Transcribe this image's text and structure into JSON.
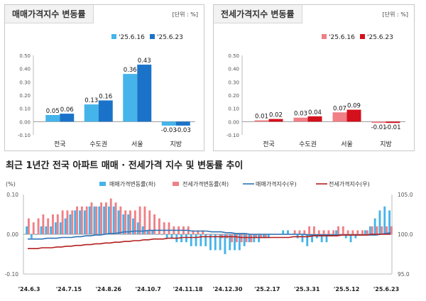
{
  "sale_panel": {
    "title": "매매가격지수 변동률",
    "unit": "[단위 : %]"
  },
  "jeonse_panel": {
    "title": "전세가격지수 변동률",
    "unit": "[단위 : %]"
  },
  "bottom": {
    "title": "최근 1년간 전국 아파트 매매 · 전세가격 지수 및 변동률 추이"
  },
  "colors": {
    "sale_light": "#45b4ea",
    "sale_dark": "#1a73c9",
    "jeonse_light": "#f07f86",
    "jeonse_dark": "#d3101c",
    "sale_index_line": "#2e74b6",
    "jeonse_index_line": "#b41e1e"
  },
  "chart_data": [
    {
      "type": "bar",
      "categories": [
        "전국",
        "수도권",
        "서울",
        "지방"
      ],
      "series": [
        {
          "name": "'25.6.16",
          "values": [
            0.05,
            0.13,
            0.36,
            -0.03
          ]
        },
        {
          "name": "'25.6.23",
          "values": [
            0.06,
            0.16,
            0.43,
            -0.03
          ]
        }
      ],
      "ylim": [
        -0.1,
        0.5
      ],
      "yticks": [
        "-0.10",
        "0.00",
        "0.10",
        "0.20",
        "0.30",
        "0.40",
        "0.50"
      ],
      "data_labels": true,
      "grid": false,
      "legend": "top-right"
    },
    {
      "type": "bar",
      "categories": [
        "전국",
        "수도권",
        "서울",
        "지방"
      ],
      "series": [
        {
          "name": "'25.6.16",
          "values": [
            0.01,
            0.03,
            0.07,
            -0.01
          ]
        },
        {
          "name": "'25.6.23",
          "values": [
            0.02,
            0.04,
            0.09,
            -0.01
          ]
        }
      ],
      "ylim": [
        -0.1,
        0.5
      ],
      "yticks": [
        "-0.10",
        "0.00",
        "0.10",
        "0.20",
        "0.30",
        "0.40",
        "0.50"
      ],
      "data_labels": true,
      "grid": false,
      "legend": "top-right"
    },
    {
      "type": "bar",
      "unit_label": "(%)",
      "x_ticks": [
        "'24.6.3",
        "'24.7.15",
        "'24.8.26",
        "'24.10.7",
        "'24.11.18",
        "'24.12.30",
        "'25.2.17",
        "'25.3.31",
        "'25.5.12",
        "'25.6.23"
      ],
      "y_left_ticks": [
        "0.10",
        "0.00",
        "-0.10"
      ],
      "y_right_ticks": [
        "105.0",
        "100.0",
        "95.0"
      ],
      "ylim_left": [
        -0.1,
        0.1
      ],
      "ylim_right": [
        95.0,
        105.0
      ],
      "legend": "top",
      "series": [
        {
          "name": "매매가격변동률(좌)",
          "kind": "bar",
          "axis": "left",
          "values": [
            0.02,
            -0.01,
            0.0,
            0.02,
            0.02,
            0.02,
            0.03,
            0.03,
            0.04,
            0.05,
            0.06,
            0.06,
            0.06,
            0.07,
            0.07,
            0.07,
            0.07,
            0.07,
            0.07,
            0.06,
            0.05,
            0.05,
            0.04,
            0.03,
            0.02,
            0.01,
            0.01,
            0.0,
            0.0,
            -0.01,
            -0.01,
            -0.02,
            -0.02,
            -0.02,
            -0.03,
            -0.03,
            -0.03,
            -0.03,
            -0.04,
            -0.04,
            -0.04,
            -0.05,
            -0.04,
            -0.04,
            -0.04,
            -0.03,
            -0.02,
            -0.02,
            -0.02,
            -0.01,
            -0.01,
            0.0,
            0.0,
            0.01,
            0.01,
            0.0,
            -0.01,
            -0.02,
            -0.03,
            -0.02,
            -0.01,
            -0.02,
            -0.02,
            0.0,
            0.01,
            0.0,
            -0.01,
            -0.02,
            -0.01,
            0.0,
            0.01,
            0.02,
            0.04,
            0.06,
            0.07,
            0.06
          ]
        },
        {
          "name": "전세가격변동률(좌)",
          "kind": "bar",
          "axis": "left",
          "values": [
            0.04,
            0.03,
            0.04,
            0.05,
            0.04,
            0.05,
            0.05,
            0.06,
            0.06,
            0.06,
            0.07,
            0.07,
            0.07,
            0.08,
            0.07,
            0.08,
            0.08,
            0.09,
            0.08,
            0.07,
            0.06,
            0.06,
            0.06,
            0.07,
            0.07,
            0.06,
            0.05,
            0.04,
            0.03,
            0.03,
            0.02,
            0.02,
            0.02,
            0.02,
            0.01,
            0.01,
            0.01,
            0.0,
            0.0,
            0.0,
            -0.01,
            -0.01,
            -0.02,
            -0.02,
            -0.02,
            -0.02,
            -0.02,
            -0.01,
            -0.01,
            -0.01,
            0.0,
            0.0,
            0.0,
            0.0,
            0.0,
            0.01,
            0.01,
            0.01,
            0.02,
            0.02,
            0.01,
            0.01,
            0.01,
            0.01,
            0.02,
            0.02,
            0.01,
            0.01,
            0.01,
            0.01,
            0.01,
            0.02,
            0.02,
            0.02,
            0.02,
            0.02
          ]
        },
        {
          "name": "매매가격지수(우)",
          "kind": "line",
          "axis": "right",
          "values": [
            99.4,
            99.4,
            99.4,
            99.4,
            99.5,
            99.5,
            99.5,
            99.6,
            99.6,
            99.6,
            99.7,
            99.7,
            99.8,
            99.8,
            99.9,
            99.9,
            100.0,
            100.1,
            100.1,
            100.2,
            100.3,
            100.3,
            100.4,
            100.4,
            100.4,
            100.5,
            100.5,
            100.5,
            100.5,
            100.5,
            100.5,
            100.5,
            100.5,
            100.5,
            100.4,
            100.4,
            100.4,
            100.4,
            100.3,
            100.3,
            100.3,
            100.2,
            100.2,
            100.1,
            100.1,
            100.1,
            100.0,
            100.0,
            100.0,
            100.0,
            100.0,
            100.0,
            100.0,
            100.0,
            100.0,
            100.0,
            100.0,
            100.0,
            99.9,
            99.9,
            99.9,
            99.9,
            99.9,
            99.9,
            99.9,
            99.9,
            99.9,
            99.9,
            99.9,
            99.9,
            99.9,
            99.9,
            99.9,
            100.0,
            100.1,
            100.2
          ]
        },
        {
          "name": "전세가격지수(우)",
          "kind": "line",
          "axis": "right",
          "values": [
            98.2,
            98.2,
            98.2,
            98.3,
            98.3,
            98.3,
            98.4,
            98.4,
            98.5,
            98.5,
            98.6,
            98.6,
            98.7,
            98.7,
            98.8,
            98.8,
            98.9,
            98.9,
            99.0,
            99.0,
            99.1,
            99.1,
            99.2,
            99.2,
            99.3,
            99.3,
            99.4,
            99.4,
            99.4,
            99.5,
            99.5,
            99.5,
            99.6,
            99.6,
            99.6,
            99.6,
            99.7,
            99.7,
            99.7,
            99.7,
            99.7,
            99.7,
            99.7,
            99.7,
            99.6,
            99.6,
            99.6,
            99.6,
            99.6,
            99.6,
            99.6,
            99.6,
            99.6,
            99.6,
            99.6,
            99.7,
            99.7,
            99.7,
            99.7,
            99.8,
            99.8,
            99.8,
            99.8,
            99.8,
            99.8,
            99.9,
            99.9,
            99.9,
            99.9,
            99.9,
            99.9,
            100.0,
            100.0,
            100.0,
            100.0,
            100.0
          ]
        }
      ]
    }
  ]
}
